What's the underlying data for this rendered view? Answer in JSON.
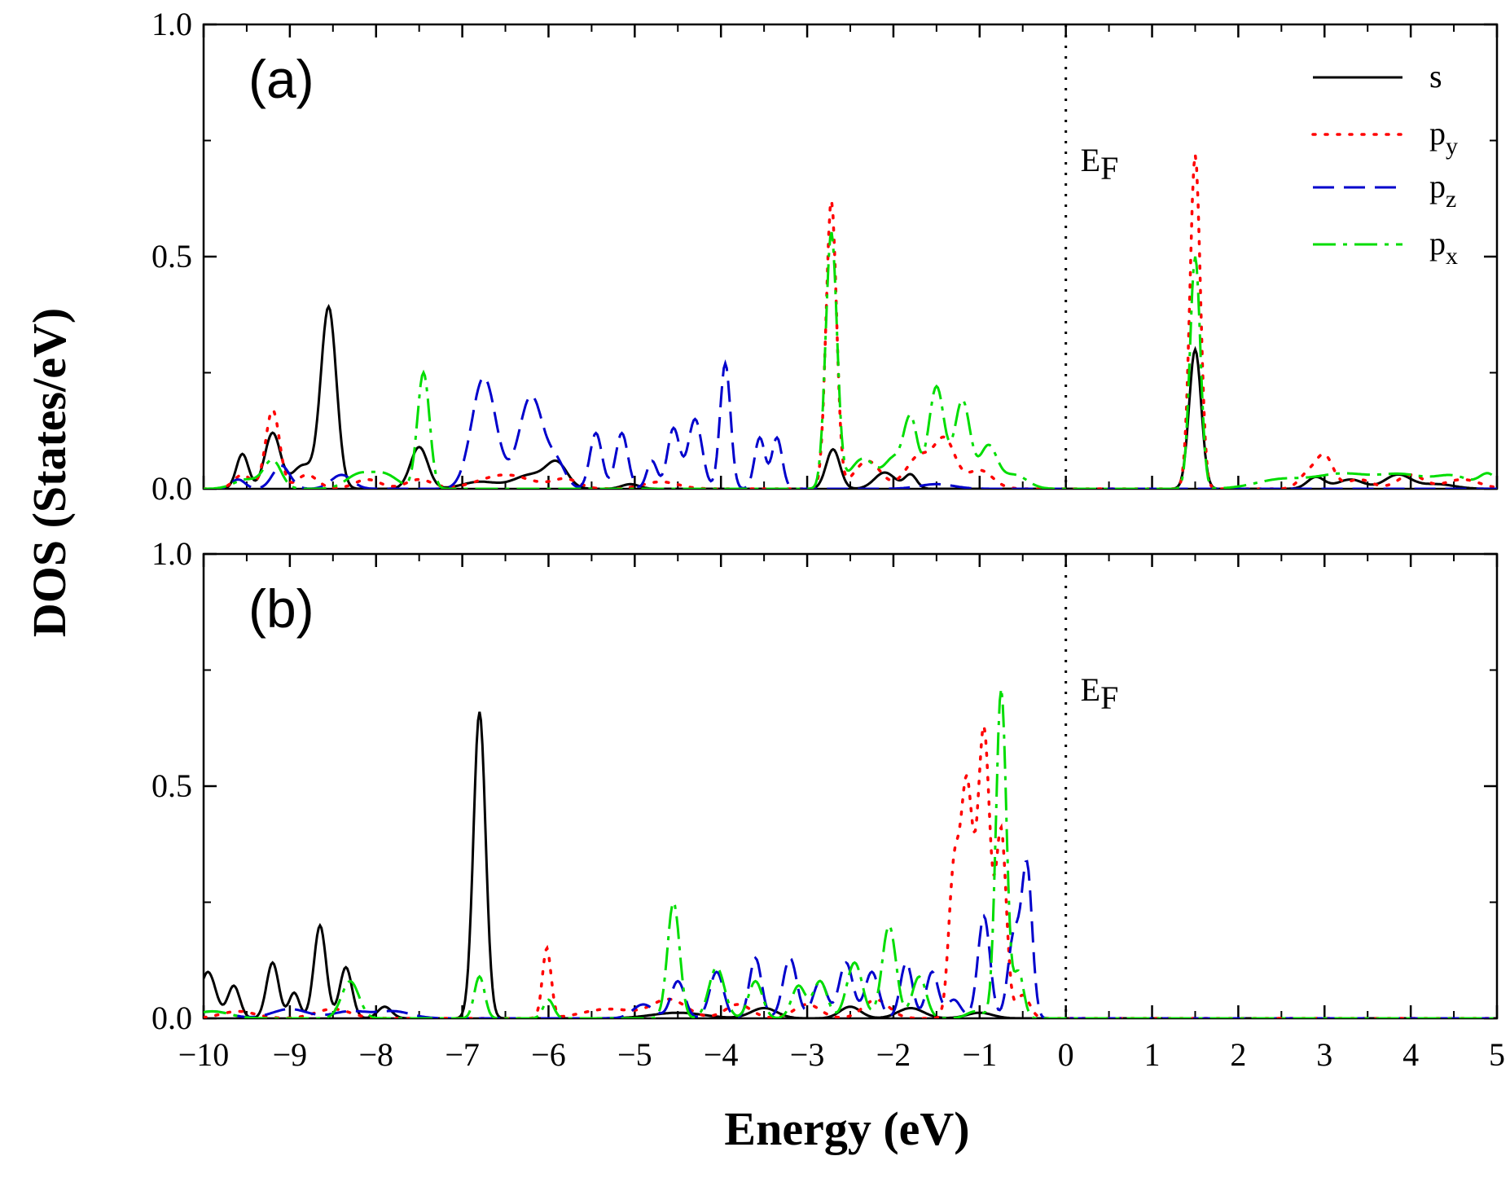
{
  "chart_data": {
    "type": "line",
    "ylabel": "DOS (States/eV)",
    "xlabel": "Energy (eV)",
    "xlim": [
      -10,
      5
    ],
    "ylim": [
      0.0,
      1.0
    ],
    "x_ticks": [
      -10,
      -9,
      -8,
      -7,
      -6,
      -5,
      -4,
      -3,
      -2,
      -1,
      0,
      1,
      2,
      3,
      4,
      5
    ],
    "x_tick_labels": [
      "−10",
      "−9",
      "−8",
      "−7",
      "−6",
      "−5",
      "−4",
      "−3",
      "−2",
      "−1",
      "0",
      "1",
      "2",
      "3",
      "4",
      "5"
    ],
    "y_ticks": [
      0.0,
      0.5,
      1.0
    ],
    "y_tick_labels": [
      "0.0",
      "0.5",
      "1.0"
    ],
    "fermi_level": 0,
    "fermi_label": "E",
    "fermi_sub": "F",
    "legend": {
      "position": "top-right",
      "entries": [
        {
          "key": "s",
          "label": "s",
          "sub": "",
          "color": "#000000",
          "dash": "solid"
        },
        {
          "key": "py",
          "label": "p",
          "sub": "y",
          "color": "#ff0000",
          "dash": "dotted"
        },
        {
          "key": "pz",
          "label": "p",
          "sub": "z",
          "color": "#0000cc",
          "dash": "dashed"
        },
        {
          "key": "px",
          "label": "p",
          "sub": "x",
          "color": "#00dd00",
          "dash": "dashdot"
        }
      ]
    },
    "panels": [
      {
        "label": "(a)",
        "series": [
          {
            "name": "s",
            "color": "#000000",
            "dash": "solid",
            "baseline": 0.0,
            "peaks": [
              [
                -9.55,
                0.075,
                0.07
              ],
              [
                -9.2,
                0.12,
                0.09
              ],
              [
                -8.85,
                0.05,
                0.12
              ],
              [
                -8.55,
                0.39,
                0.09
              ],
              [
                -7.5,
                0.09,
                0.1
              ],
              [
                -6.8,
                0.015,
                0.2
              ],
              [
                -6.2,
                0.03,
                0.2
              ],
              [
                -5.9,
                0.05,
                0.12
              ],
              [
                -5.05,
                0.01,
                0.1
              ],
              [
                -2.7,
                0.085,
                0.08
              ],
              [
                -2.1,
                0.035,
                0.12
              ],
              [
                -1.8,
                0.03,
                0.07
              ],
              [
                1.5,
                0.3,
                0.07
              ],
              [
                2.9,
                0.025,
                0.1
              ],
              [
                3.3,
                0.02,
                0.15
              ],
              [
                3.85,
                0.03,
                0.15
              ],
              [
                4.3,
                0.01,
                0.2
              ]
            ]
          },
          {
            "name": "py",
            "color": "#ff0000",
            "dash": "dotted",
            "baseline": 0.0,
            "peaks": [
              [
                -9.55,
                0.03,
                0.1
              ],
              [
                -9.2,
                0.17,
                0.08
              ],
              [
                -8.8,
                0.03,
                0.12
              ],
              [
                -8.1,
                0.02,
                0.15
              ],
              [
                -7.5,
                0.02,
                0.15
              ],
              [
                -6.5,
                0.03,
                0.3
              ],
              [
                -5.8,
                0.02,
                0.15
              ],
              [
                -4.7,
                0.015,
                0.2
              ],
              [
                -2.72,
                0.62,
                0.06
              ],
              [
                -2.3,
                0.06,
                0.15
              ],
              [
                -1.7,
                0.07,
                0.15
              ],
              [
                -1.4,
                0.1,
                0.12
              ],
              [
                -1.0,
                0.04,
                0.15
              ],
              [
                1.5,
                0.72,
                0.06
              ],
              [
                2.8,
                0.03,
                0.1
              ],
              [
                3.0,
                0.07,
                0.1
              ],
              [
                3.4,
                0.02,
                0.15
              ],
              [
                4.0,
                0.03,
                0.15
              ],
              [
                4.6,
                0.02,
                0.2
              ]
            ]
          },
          {
            "name": "pz",
            "color": "#0000cc",
            "dash": "dashed",
            "baseline": 0.0,
            "peaks": [
              [
                -9.6,
                0.02,
                0.08
              ],
              [
                -9.1,
                0.05,
                0.1
              ],
              [
                -8.4,
                0.03,
                0.12
              ],
              [
                -6.75,
                0.24,
                0.14
              ],
              [
                -6.2,
                0.2,
                0.14
              ],
              [
                -5.9,
                0.05,
                0.1
              ],
              [
                -5.45,
                0.12,
                0.07
              ],
              [
                -5.15,
                0.12,
                0.07
              ],
              [
                -4.8,
                0.06,
                0.06
              ],
              [
                -4.55,
                0.13,
                0.07
              ],
              [
                -4.3,
                0.15,
                0.08
              ],
              [
                -3.95,
                0.27,
                0.06
              ],
              [
                -3.55,
                0.11,
                0.06
              ],
              [
                -3.35,
                0.11,
                0.06
              ],
              [
                -1.5,
                0.01,
                0.2
              ]
            ]
          },
          {
            "name": "px",
            "color": "#00dd00",
            "dash": "dashdot",
            "baseline": 0.0,
            "peaks": [
              [
                -9.5,
                0.02,
                0.15
              ],
              [
                -9.2,
                0.06,
                0.1
              ],
              [
                -8.2,
                0.03,
                0.15
              ],
              [
                -7.9,
                0.03,
                0.15
              ],
              [
                -7.45,
                0.25,
                0.07
              ],
              [
                -2.72,
                0.55,
                0.065
              ],
              [
                -2.35,
                0.065,
                0.15
              ],
              [
                -2.0,
                0.06,
                0.1
              ],
              [
                -1.8,
                0.15,
                0.08
              ],
              [
                -1.5,
                0.22,
                0.09
              ],
              [
                -1.2,
                0.19,
                0.09
              ],
              [
                -0.9,
                0.09,
                0.1
              ],
              [
                -0.6,
                0.03,
                0.15
              ],
              [
                1.5,
                0.5,
                0.06
              ],
              [
                2.5,
                0.02,
                0.3
              ],
              [
                3.2,
                0.03,
                0.3
              ],
              [
                3.9,
                0.03,
                0.3
              ],
              [
                4.5,
                0.025,
                0.2
              ],
              [
                4.9,
                0.03,
                0.1
              ]
            ]
          }
        ]
      },
      {
        "label": "(b)",
        "series": [
          {
            "name": "s",
            "color": "#000000",
            "dash": "solid",
            "baseline": 0.0,
            "peaks": [
              [
                -9.95,
                0.1,
                0.09
              ],
              [
                -9.65,
                0.07,
                0.07
              ],
              [
                -9.2,
                0.12,
                0.07
              ],
              [
                -8.95,
                0.055,
                0.06
              ],
              [
                -8.65,
                0.2,
                0.07
              ],
              [
                -8.35,
                0.11,
                0.07
              ],
              [
                -7.9,
                0.025,
                0.08
              ],
              [
                -6.8,
                0.66,
                0.07
              ],
              [
                -4.5,
                0.012,
                0.3
              ],
              [
                -3.5,
                0.022,
                0.15
              ],
              [
                -2.5,
                0.025,
                0.12
              ],
              [
                -1.8,
                0.022,
                0.15
              ],
              [
                -1.0,
                0.012,
                0.15
              ]
            ]
          },
          {
            "name": "py",
            "color": "#ff0000",
            "dash": "dotted",
            "baseline": 0.0,
            "peaks": [
              [
                -9.6,
                0.015,
                0.2
              ],
              [
                -8.5,
                0.02,
                0.2
              ],
              [
                -6.02,
                0.15,
                0.05
              ],
              [
                -5.3,
                0.02,
                0.3
              ],
              [
                -4.6,
                0.04,
                0.2
              ],
              [
                -3.8,
                0.03,
                0.15
              ],
              [
                -3.0,
                0.03,
                0.15
              ],
              [
                -2.2,
                0.04,
                0.15
              ],
              [
                -1.3,
                0.3,
                0.06
              ],
              [
                -1.15,
                0.5,
                0.07
              ],
              [
                -0.95,
                0.62,
                0.07
              ],
              [
                -0.75,
                0.4,
                0.06
              ],
              [
                -0.5,
                0.05,
                0.08
              ]
            ]
          },
          {
            "name": "pz",
            "color": "#0000cc",
            "dash": "dashed",
            "baseline": 0.0,
            "peaks": [
              [
                -9.9,
                0.015,
                0.2
              ],
              [
                -9.0,
                0.02,
                0.2
              ],
              [
                -8.3,
                0.015,
                0.2
              ],
              [
                -7.8,
                0.015,
                0.2
              ],
              [
                -4.9,
                0.03,
                0.12
              ],
              [
                -4.5,
                0.08,
                0.08
              ],
              [
                -4.05,
                0.1,
                0.08
              ],
              [
                -3.6,
                0.13,
                0.07
              ],
              [
                -3.2,
                0.13,
                0.08
              ],
              [
                -2.85,
                0.08,
                0.08
              ],
              [
                -2.55,
                0.12,
                0.08
              ],
              [
                -2.25,
                0.1,
                0.08
              ],
              [
                -1.85,
                0.12,
                0.07
              ],
              [
                -1.55,
                0.1,
                0.07
              ],
              [
                -1.3,
                0.04,
                0.08
              ],
              [
                -0.95,
                0.22,
                0.07
              ],
              [
                -0.6,
                0.18,
                0.07
              ],
              [
                -0.45,
                0.32,
                0.06
              ]
            ]
          },
          {
            "name": "px",
            "color": "#00dd00",
            "dash": "dashdot",
            "baseline": 0.0,
            "peaks": [
              [
                -9.9,
                0.015,
                0.2
              ],
              [
                -8.3,
                0.08,
                0.1
              ],
              [
                -6.8,
                0.09,
                0.06
              ],
              [
                -6.0,
                0.04,
                0.06
              ],
              [
                -4.55,
                0.25,
                0.07
              ],
              [
                -4.05,
                0.11,
                0.09
              ],
              [
                -3.6,
                0.08,
                0.08
              ],
              [
                -3.1,
                0.07,
                0.08
              ],
              [
                -2.85,
                0.08,
                0.08
              ],
              [
                -2.45,
                0.12,
                0.09
              ],
              [
                -2.05,
                0.2,
                0.08
              ],
              [
                -1.7,
                0.09,
                0.08
              ],
              [
                -1.05,
                0.015,
                0.1
              ],
              [
                -0.75,
                0.71,
                0.06
              ],
              [
                -0.55,
                0.1,
                0.06
              ]
            ]
          }
        ]
      }
    ]
  }
}
